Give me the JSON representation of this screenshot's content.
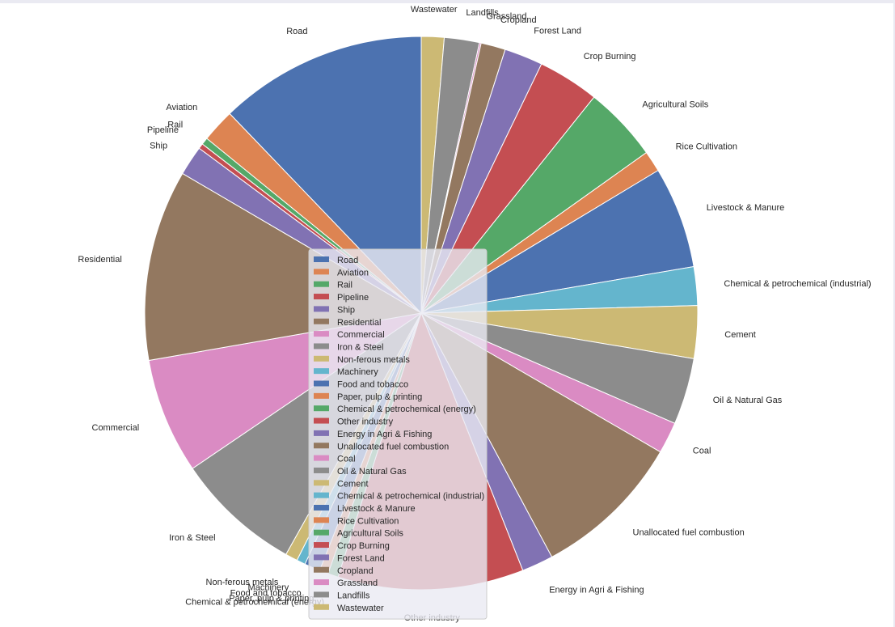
{
  "chart_data": {
    "type": "pie",
    "title": "",
    "legend_position": "center",
    "start_angle_deg": 90,
    "direction": "clockwise",
    "slices": [
      {
        "label": "Wastewater",
        "value": 1.3,
        "color": "#ccb974"
      },
      {
        "label": "Landfills",
        "value": 2.0,
        "color": "#8c8c8c"
      },
      {
        "label": "Grassland",
        "value": 0.1,
        "color": "#da8bc3"
      },
      {
        "label": "Cropland",
        "value": 1.4,
        "color": "#937860"
      },
      {
        "label": "Forest Land",
        "value": 2.2,
        "color": "#8172b3"
      },
      {
        "label": "Crop Burning",
        "value": 3.5,
        "color": "#c44e52"
      },
      {
        "label": "Agricultural Soils",
        "value": 4.3,
        "color": "#55a868"
      },
      {
        "label": "Rice Cultivation",
        "value": 1.2,
        "color": "#dd8452"
      },
      {
        "label": "Livestock & Manure",
        "value": 5.8,
        "color": "#4c72b0"
      },
      {
        "label": "Chemical & petrochemical (industrial)",
        "value": 2.2,
        "color": "#64b5cd"
      },
      {
        "label": "Cement",
        "value": 3.0,
        "color": "#ccb974"
      },
      {
        "label": "Oil & Natural Gas",
        "value": 3.8,
        "color": "#8c8c8c"
      },
      {
        "label": "Coal",
        "value": 1.8,
        "color": "#da8bc3"
      },
      {
        "label": "Unallocated fuel combustion",
        "value": 8.6,
        "color": "#937860"
      },
      {
        "label": "Energy in Agri & Fishing",
        "value": 1.8,
        "color": "#8172b3"
      },
      {
        "label": "Other industry",
        "value": 10.6,
        "color": "#c44e52"
      },
      {
        "label": "Chemical & petrochemical (energy)",
        "value": 0.6,
        "color": "#55a868"
      },
      {
        "label": "Paper, pulp & printing",
        "value": 0.5,
        "color": "#dd8452"
      },
      {
        "label": "Food and tobacco",
        "value": 0.9,
        "color": "#4c72b0"
      },
      {
        "label": "Machinery",
        "value": 0.5,
        "color": "#64b5cd"
      },
      {
        "label": "Non-ferous metals",
        "value": 0.7,
        "color": "#ccb974"
      },
      {
        "label": "Iron & Steel",
        "value": 7.2,
        "color": "#8c8c8c"
      },
      {
        "label": "Commercial",
        "value": 6.6,
        "color": "#da8bc3"
      },
      {
        "label": "Residential",
        "value": 10.9,
        "color": "#937860"
      },
      {
        "label": "Ship",
        "value": 1.7,
        "color": "#8172b3"
      },
      {
        "label": "Pipeline",
        "value": 0.3,
        "color": "#c44e52"
      },
      {
        "label": "Rail",
        "value": 0.4,
        "color": "#55a868"
      },
      {
        "label": "Aviation",
        "value": 1.9,
        "color": "#dd8452"
      },
      {
        "label": "Road",
        "value": 11.9,
        "color": "#4c72b0"
      }
    ],
    "legend_order": [
      "Road",
      "Aviation",
      "Rail",
      "Pipeline",
      "Ship",
      "Residential",
      "Commercial",
      "Iron & Steel",
      "Non-ferous metals",
      "Machinery",
      "Food and tobacco",
      "Paper, pulp & printing",
      "Chemical & petrochemical (energy)",
      "Other industry",
      "Energy in Agri & Fishing",
      "Unallocated fuel combustion",
      "Coal",
      "Oil & Natural Gas",
      "Cement",
      "Chemical & petrochemical (industrial)",
      "Livestock & Manure",
      "Rice Cultivation",
      "Agricultural Soils",
      "Crop Burning",
      "Forest Land",
      "Cropland",
      "Grassland",
      "Landfills",
      "Wastewater"
    ]
  }
}
